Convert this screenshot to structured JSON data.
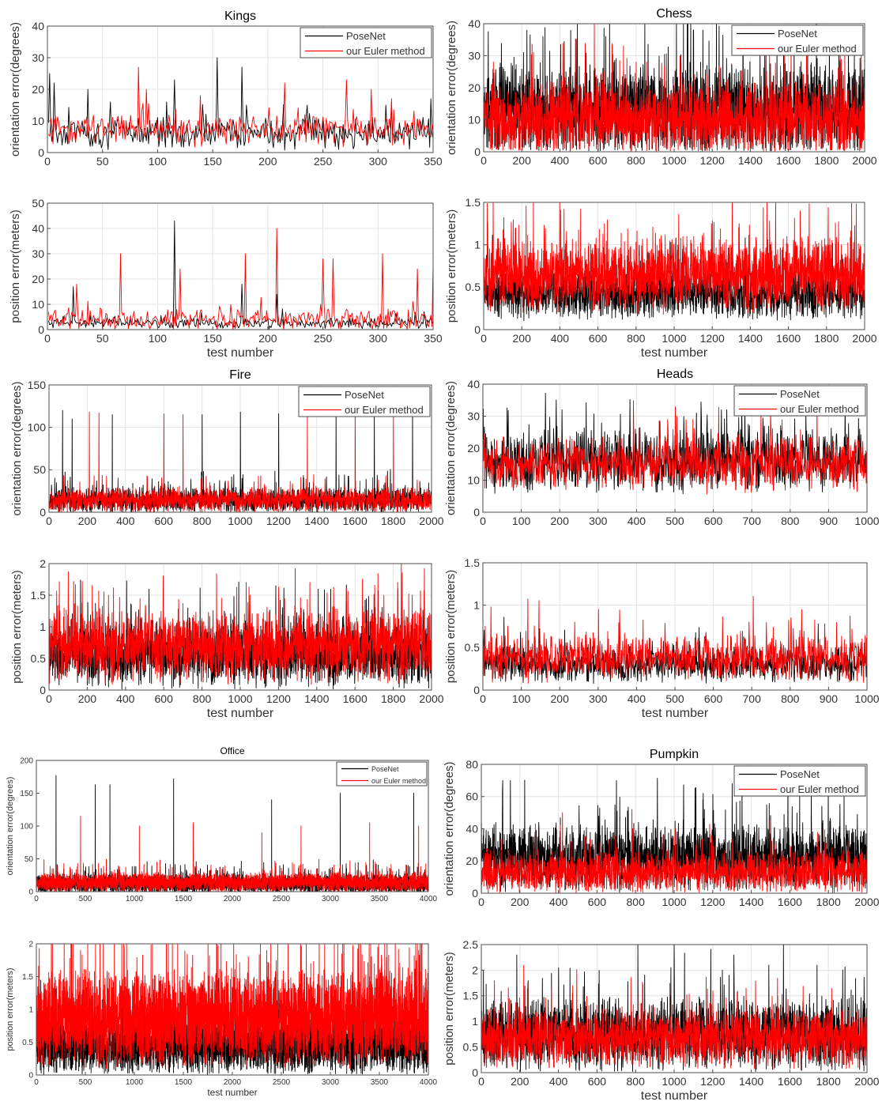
{
  "chart_data": [
    {
      "id": "kings-ori",
      "type": "line",
      "title": "Kings",
      "xlabel": "",
      "ylabel": "orientation error(degrees)",
      "xlim": [
        0,
        350
      ],
      "ylim": [
        0,
        40
      ],
      "xticks": [
        0,
        50,
        100,
        150,
        200,
        250,
        300,
        350
      ],
      "yticks": [
        0,
        10,
        20,
        30,
        40
      ],
      "grid": true,
      "legend": "top-right",
      "series": [
        {
          "name": "PoseNet",
          "color": "#000000",
          "n": 343,
          "level": 6,
          "spread": 3.5,
          "spikes": [
            [
              1,
              25
            ],
            [
              5,
              22
            ],
            [
              35,
              20
            ],
            [
              55,
              16
            ],
            [
              105,
              16
            ],
            [
              112,
              23
            ],
            [
              150,
              30
            ],
            [
              172,
              27
            ],
            [
              230,
              15
            ],
            [
              300,
              15
            ],
            [
              340,
              17
            ]
          ]
        },
        {
          "name": "our Euler method",
          "color": "#ff0000",
          "n": 343,
          "level": 7,
          "spread": 3.5,
          "spikes": [
            [
              80,
              27
            ],
            [
              87,
              20
            ],
            [
              135,
              18
            ],
            [
              210,
              22
            ],
            [
              265,
              23
            ],
            [
              287,
              20
            ],
            [
              305,
              17
            ]
          ]
        }
      ]
    },
    {
      "id": "kings-pos",
      "type": "line",
      "title": "",
      "xlabel": "test number",
      "ylabel": "position error(meters)",
      "xlim": [
        0,
        350
      ],
      "ylim": [
        0,
        50
      ],
      "xticks": [
        0,
        50,
        100,
        150,
        200,
        250,
        300,
        350
      ],
      "yticks": [
        0,
        10,
        20,
        30,
        40,
        50
      ],
      "grid": true,
      "legend": "none",
      "series": [
        {
          "name": "PoseNet",
          "color": "#000000",
          "n": 343,
          "level": 2.5,
          "spread": 1.5,
          "spikes": [
            [
              22,
              17
            ],
            [
              112,
              43
            ],
            [
              172,
              18
            ],
            [
              203,
              14
            ]
          ]
        },
        {
          "name": "our Euler method",
          "color": "#ff0000",
          "n": 343,
          "level": 4,
          "spread": 3,
          "spikes": [
            [
              25,
              18
            ],
            [
              64,
              30
            ],
            [
              117,
              24
            ],
            [
              175,
              30
            ],
            [
              203,
              40
            ],
            [
              244,
              28
            ],
            [
              253,
              28
            ],
            [
              297,
              30
            ],
            [
              328,
              24
            ],
            [
              343,
              26
            ]
          ]
        }
      ]
    },
    {
      "id": "chess-ori",
      "type": "line",
      "title": "Chess",
      "xlabel": "",
      "ylabel": "orientation error(degrees)",
      "xlim": [
        0,
        2000
      ],
      "ylim": [
        0,
        40
      ],
      "xticks": [
        0,
        200,
        400,
        600,
        800,
        1000,
        1200,
        1400,
        1600,
        1800,
        2000
      ],
      "yticks": [
        0,
        10,
        20,
        30,
        40
      ],
      "grid": true,
      "legend": "top-right",
      "series": [
        {
          "name": "PoseNet",
          "color": "#000000",
          "n": 2000,
          "level": 13,
          "spread": 10,
          "spikes": [
            [
              310,
              36
            ],
            [
              640,
              36
            ],
            [
              1100,
              38
            ],
            [
              1150,
              38
            ],
            [
              1360,
              36
            ],
            [
              1700,
              36
            ]
          ]
        },
        {
          "name": "our Euler method",
          "color": "#ff0000",
          "n": 2000,
          "level": 10,
          "spread": 8,
          "spikes": [
            [
              50,
              28
            ],
            [
              800,
              28
            ],
            [
              1500,
              30
            ]
          ]
        }
      ]
    },
    {
      "id": "chess-pos",
      "type": "line",
      "title": "",
      "xlabel": "test number",
      "ylabel": "position error(meters)",
      "xlim": [
        0,
        2000
      ],
      "ylim": [
        0,
        1.5
      ],
      "xticks": [
        0,
        200,
        400,
        600,
        800,
        1000,
        1200,
        1400,
        1600,
        1800,
        2000
      ],
      "yticks": [
        0,
        0.5,
        1,
        1.5
      ],
      "grid": true,
      "legend": "none",
      "series": [
        {
          "name": "PoseNet",
          "color": "#000000",
          "n": 2000,
          "level": 0.42,
          "spread": 0.2,
          "spikes": []
        },
        {
          "name": "our Euler method",
          "color": "#ff0000",
          "n": 2000,
          "level": 0.65,
          "spread": 0.3,
          "spikes": [
            [
              1200,
              1.28
            ],
            [
              1500,
              1.28
            ]
          ]
        }
      ]
    },
    {
      "id": "fire-ori",
      "type": "line",
      "title": "Fire",
      "xlabel": "",
      "ylabel": "orientation error(degrees)",
      "xlim": [
        0,
        2000
      ],
      "ylim": [
        0,
        150
      ],
      "xticks": [
        0,
        200,
        400,
        600,
        800,
        1000,
        1200,
        1400,
        1600,
        1800,
        2000
      ],
      "yticks": [
        0,
        50,
        100,
        150
      ],
      "grid": true,
      "legend": "top-right",
      "series": [
        {
          "name": "PoseNet",
          "color": "#000000",
          "n": 2000,
          "level": 14,
          "spread": 10,
          "spikes": [
            [
              70,
              120
            ],
            [
              120,
              110
            ],
            [
              330,
              115
            ],
            [
              800,
              115
            ],
            [
              1000,
              118
            ],
            [
              1200,
              116
            ],
            [
              1500,
              118
            ],
            [
              1700,
              115
            ],
            [
              1900,
              118
            ]
          ]
        },
        {
          "name": "our Euler method",
          "color": "#ff0000",
          "n": 2000,
          "level": 14,
          "spread": 10,
          "spikes": [
            [
              210,
              118
            ],
            [
              260,
              117
            ],
            [
              600,
              116
            ],
            [
              700,
              115
            ],
            [
              1350,
              117
            ],
            [
              1600,
              116
            ],
            [
              1800,
              114
            ]
          ]
        }
      ]
    },
    {
      "id": "fire-pos",
      "type": "line",
      "title": "",
      "xlabel": "test number",
      "ylabel": "position error(meters)",
      "xlim": [
        0,
        2000
      ],
      "ylim": [
        0,
        2
      ],
      "xticks": [
        0,
        200,
        400,
        600,
        800,
        1000,
        1200,
        1400,
        1600,
        1800,
        2000
      ],
      "yticks": [
        0,
        0.5,
        1,
        1.5,
        2
      ],
      "grid": true,
      "legend": "none",
      "series": [
        {
          "name": "PoseNet",
          "color": "#000000",
          "n": 2000,
          "level": 0.55,
          "spread": 0.35,
          "spikes": []
        },
        {
          "name": "our Euler method",
          "color": "#ff0000",
          "n": 2000,
          "level": 0.7,
          "spread": 0.4,
          "spikes": [
            [
              310,
              1.5
            ],
            [
              1050,
              1.5
            ],
            [
              1750,
              1.5
            ]
          ]
        }
      ]
    },
    {
      "id": "heads-ori",
      "type": "line",
      "title": "Heads",
      "xlabel": "",
      "ylabel": "orientation error(degrees)",
      "xlim": [
        0,
        1000
      ],
      "ylim": [
        0,
        40
      ],
      "xticks": [
        0,
        100,
        200,
        300,
        400,
        500,
        600,
        700,
        800,
        900,
        1000
      ],
      "yticks": [
        0,
        10,
        20,
        30,
        40
      ],
      "grid": true,
      "legend": "top-right",
      "series": [
        {
          "name": "PoseNet",
          "color": "#000000",
          "n": 1000,
          "level": 16,
          "spread": 7,
          "spikes": [
            [
              205,
              32
            ],
            [
              555,
              31
            ],
            [
              620,
              32
            ],
            [
              840,
              31
            ]
          ]
        },
        {
          "name": "our Euler method",
          "color": "#ff0000",
          "n": 1000,
          "level": 15,
          "spread": 6,
          "spikes": [
            [
              480,
              29
            ]
          ]
        }
      ]
    },
    {
      "id": "heads-pos",
      "type": "line",
      "title": "",
      "xlabel": "test number",
      "ylabel": "position error(meters)",
      "xlim": [
        0,
        1000
      ],
      "ylim": [
        0,
        1.5
      ],
      "xticks": [
        0,
        100,
        200,
        300,
        400,
        500,
        600,
        700,
        800,
        900,
        1000
      ],
      "yticks": [
        0,
        0.5,
        1,
        1.5
      ],
      "grid": true,
      "legend": "none",
      "series": [
        {
          "name": "PoseNet",
          "color": "#000000",
          "n": 1000,
          "level": 0.3,
          "spread": 0.15,
          "spikes": []
        },
        {
          "name": "our Euler method",
          "color": "#ff0000",
          "n": 1000,
          "level": 0.38,
          "spread": 0.2,
          "spikes": [
            [
              20,
              0.98
            ],
            [
              300,
              0.95
            ],
            [
              960,
              0.72
            ]
          ]
        }
      ]
    },
    {
      "id": "office-ori",
      "type": "line",
      "title": "Office",
      "xlabel": "",
      "ylabel": "orientation error(degrees)",
      "xlim": [
        0,
        4000
      ],
      "ylim": [
        0,
        200
      ],
      "xticks": [
        0,
        500,
        1000,
        1500,
        2000,
        2500,
        3000,
        3500,
        4000
      ],
      "yticks": [
        0,
        50,
        100,
        150,
        200
      ],
      "grid": false,
      "legend": "top-right",
      "series": [
        {
          "name": "PoseNet",
          "color": "#000000",
          "n": 4000,
          "level": 12,
          "spread": 10,
          "spikes": [
            [
              200,
              177
            ],
            [
              600,
              163
            ],
            [
              750,
              163
            ],
            [
              1400,
              172
            ],
            [
              2400,
              140
            ],
            [
              3100,
              150
            ],
            [
              3850,
              150
            ]
          ]
        },
        {
          "name": "our Euler method",
          "color": "#ff0000",
          "n": 4000,
          "level": 14,
          "spread": 10,
          "spikes": [
            [
              450,
              115
            ],
            [
              1050,
              100
            ],
            [
              1600,
              105
            ],
            [
              2300,
              90
            ],
            [
              2700,
              100
            ],
            [
              3400,
              105
            ],
            [
              3900,
              100
            ]
          ]
        }
      ]
    },
    {
      "id": "office-pos",
      "type": "line",
      "title": "",
      "xlabel": "test number",
      "ylabel": "position error(meters)",
      "xlim": [
        0,
        4000
      ],
      "ylim": [
        0,
        2
      ],
      "xticks": [
        0,
        500,
        1000,
        1500,
        2000,
        2500,
        3000,
        3500,
        4000
      ],
      "yticks": [
        0,
        0.5,
        1,
        1.5,
        2
      ],
      "grid": false,
      "legend": "none",
      "series": [
        {
          "name": "PoseNet",
          "color": "#000000",
          "n": 4000,
          "level": 0.45,
          "spread": 0.3,
          "spikes": []
        },
        {
          "name": "our Euler method",
          "color": "#ff0000",
          "n": 4000,
          "level": 0.85,
          "spread": 0.5,
          "spikes": [
            [
              450,
              1.9
            ],
            [
              2350,
              1.9
            ],
            [
              3900,
              1.9
            ]
          ]
        }
      ]
    },
    {
      "id": "pumpkin-ori",
      "type": "line",
      "title": "Pumpkin",
      "xlabel": "",
      "ylabel": "orientation error(degrees)",
      "xlim": [
        0,
        2000
      ],
      "ylim": [
        0,
        80
      ],
      "xticks": [
        0,
        200,
        400,
        600,
        800,
        1000,
        1200,
        1400,
        1600,
        1800,
        2000
      ],
      "yticks": [
        0,
        20,
        40,
        60,
        80
      ],
      "grid": true,
      "legend": "top-right",
      "series": [
        {
          "name": "PoseNet",
          "color": "#000000",
          "n": 2000,
          "level": 22,
          "spread": 14,
          "spikes": [
            [
              110,
              70
            ],
            [
              150,
              70
            ],
            [
              700,
              70
            ],
            [
              1150,
              62
            ],
            [
              1300,
              68
            ],
            [
              1650,
              60
            ],
            [
              1880,
              60
            ]
          ]
        },
        {
          "name": "our Euler method",
          "color": "#ff0000",
          "n": 2000,
          "level": 13,
          "spread": 9,
          "spikes": [
            [
              420,
              50
            ],
            [
              780,
              52
            ],
            [
              1500,
              45
            ]
          ]
        }
      ]
    },
    {
      "id": "pumpkin-pos",
      "type": "line",
      "title": "",
      "xlabel": "test number",
      "ylabel": "position error(meters)",
      "xlim": [
        0,
        2000
      ],
      "ylim": [
        0,
        2.5
      ],
      "xticks": [
        0,
        200,
        400,
        600,
        800,
        1000,
        1200,
        1400,
        1600,
        1800,
        2000
      ],
      "yticks": [
        0,
        0.5,
        1,
        1.5,
        2,
        2.5
      ],
      "grid": true,
      "legend": "none",
      "series": [
        {
          "name": "PoseNet",
          "color": "#000000",
          "n": 2000,
          "level": 0.75,
          "spread": 0.5,
          "spikes": [
            [
              10,
              2.0
            ],
            [
              400,
              2.05
            ],
            [
              1000,
              2.15
            ],
            [
              1490,
              2.1
            ],
            [
              1740,
              2.1
            ]
          ]
        },
        {
          "name": "our Euler method",
          "color": "#ff0000",
          "n": 2000,
          "level": 0.65,
          "spread": 0.4,
          "spikes": [
            [
              240,
              1.75
            ],
            [
              1200,
              1.6
            ]
          ]
        }
      ]
    }
  ]
}
